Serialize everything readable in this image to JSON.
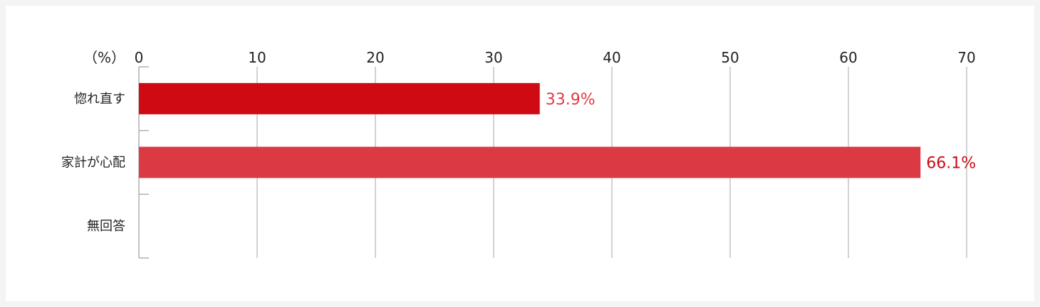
{
  "chart_data": {
    "type": "bar",
    "orientation": "horizontal",
    "unit_label": "（%）",
    "categories": [
      "惚れ直す",
      "家計が心配",
      "無回答"
    ],
    "values": [
      33.9,
      66.1,
      null
    ],
    "value_labels": [
      "33.9%",
      "66.1%",
      ""
    ],
    "xlim": [
      0,
      70
    ],
    "xticks": [
      0,
      10,
      20,
      30,
      40,
      50,
      60,
      70
    ],
    "xtick_labels": [
      "0",
      "10",
      "20",
      "30",
      "40",
      "50",
      "60",
      "70"
    ],
    "grid": true,
    "bar_colors": [
      "#d00a12",
      "#dc3a42",
      "#dc3a42"
    ],
    "label_colors": [
      "#e03a44",
      "#cc0a12",
      "#cc0a12"
    ]
  }
}
